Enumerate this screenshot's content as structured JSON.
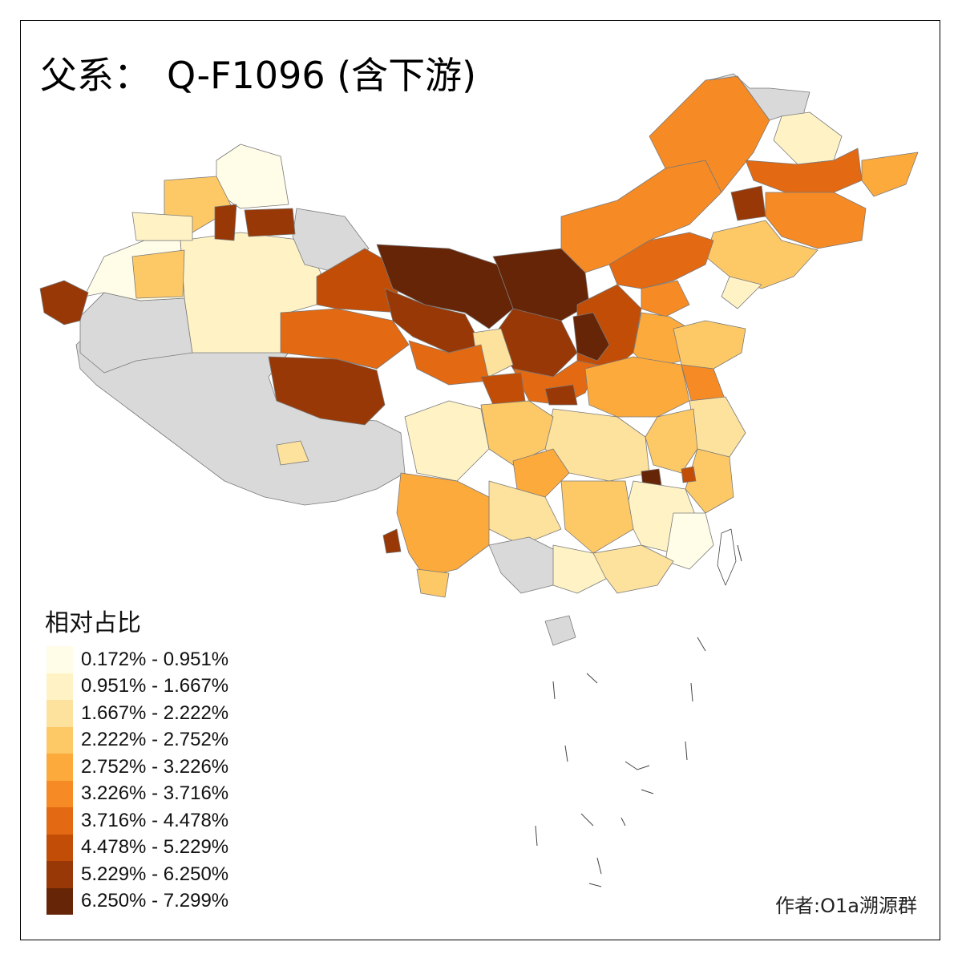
{
  "title": {
    "prefix": "父系：",
    "haplogroup": "Q-F1096 (含下游)"
  },
  "legend": {
    "title": "相对占比",
    "items": [
      {
        "label": "0.172% - 0.951%",
        "color": "#fffde8"
      },
      {
        "label": "0.951% - 1.667%",
        "color": "#fff3c6"
      },
      {
        "label": "1.667% - 2.222%",
        "color": "#fde29e"
      },
      {
        "label": "2.222% - 2.752%",
        "color": "#fdc967"
      },
      {
        "label": "2.752% - 3.226%",
        "color": "#fdaa3d"
      },
      {
        "label": "3.226% - 3.716%",
        "color": "#f68a25"
      },
      {
        "label": "3.716% - 4.478%",
        "color": "#e36912"
      },
      {
        "label": "4.478% - 5.229%",
        "color": "#c24d06"
      },
      {
        "label": "5.229% - 6.250%",
        "color": "#983806"
      },
      {
        "label": "6.250% - 7.299%",
        "color": "#662506"
      }
    ]
  },
  "no_data_color": "#d9d9d9",
  "author": "作者:O1a溯源群"
}
